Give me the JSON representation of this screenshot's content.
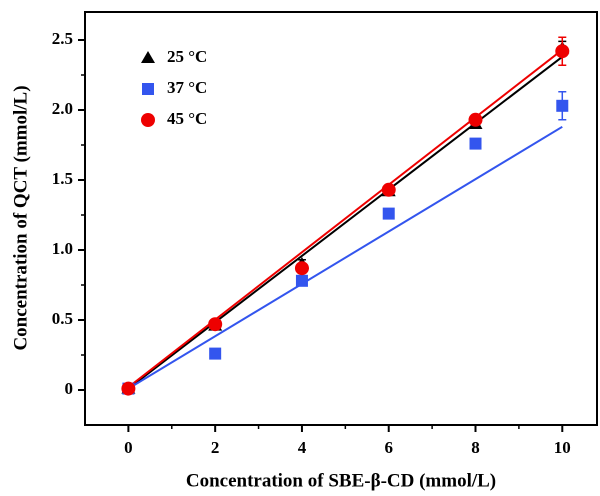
{
  "chart_data": {
    "type": "scatter",
    "x_label": "Concentration of SBE-β-CD (mmol/L)",
    "y_label": "Concentration of QCT (mmol/L)",
    "xlim": [
      -1,
      10.8
    ],
    "ylim": [
      -0.25,
      2.7
    ],
    "xticks": [
      0,
      2,
      4,
      6,
      8,
      10
    ],
    "xminorticks": [
      1,
      3,
      5,
      7,
      9
    ],
    "yticks": [
      0,
      0.5,
      {
        "value": 1,
        "label": "1.0"
      },
      1.5,
      {
        "value": 2,
        "label": "2.0"
      },
      2.5
    ],
    "yminorticks": [
      0.25,
      0.75,
      1.25,
      1.75,
      2.25
    ],
    "legend": "upper-left",
    "x": [
      0,
      2,
      4,
      6,
      8,
      10
    ],
    "series": [
      {
        "name": "25 °C",
        "color": "#000000",
        "marker": "triangle",
        "values": [
          0.01,
          0.46,
          0.9,
          1.42,
          1.9,
          2.44
        ],
        "errors": [
          0.01,
          0.02,
          0.03,
          0.02,
          0.02,
          0.05
        ],
        "fit_x": [
          0,
          10
        ],
        "fit_y": [
          0.01,
          2.38
        ]
      },
      {
        "name": "37 °C",
        "color": "#3355ee",
        "marker": "square",
        "values": [
          0.01,
          0.26,
          0.78,
          1.26,
          1.76,
          2.03
        ],
        "errors": [
          0.01,
          0.01,
          0.02,
          0.02,
          0.02,
          0.1
        ],
        "fit_x": [
          0,
          10
        ],
        "fit_y": [
          0.01,
          1.88
        ]
      },
      {
        "name": "45 °C",
        "color": "#ee0000",
        "marker": "circle",
        "values": [
          0.01,
          0.47,
          0.87,
          1.43,
          1.93,
          2.42
        ],
        "errors": [
          0.01,
          0.02,
          0.03,
          0.02,
          0.02,
          0.1
        ],
        "fit_x": [
          0,
          10
        ],
        "fit_y": [
          0.02,
          2.43
        ]
      }
    ]
  }
}
